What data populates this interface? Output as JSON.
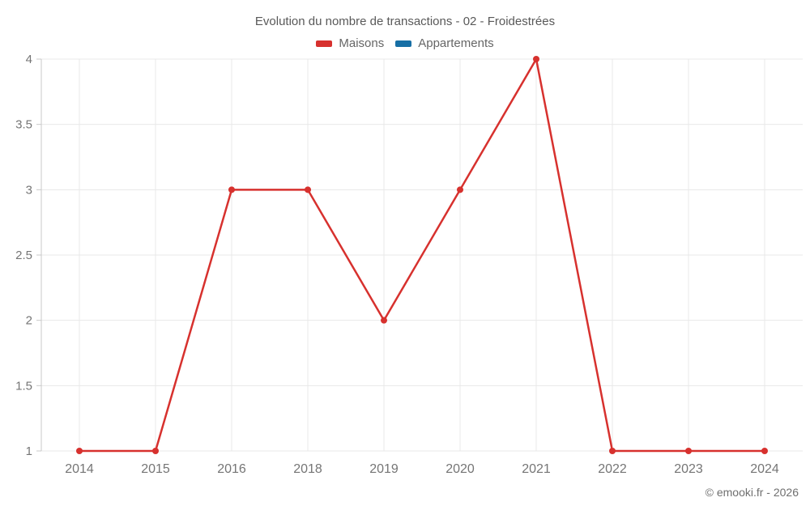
{
  "chart_data": {
    "type": "line",
    "title": "Evolution du nombre de transactions - 02 - Froidestrées",
    "categories": [
      "2014",
      "2015",
      "2016",
      "2018",
      "2019",
      "2020",
      "2021",
      "2022",
      "2023",
      "2024"
    ],
    "series": [
      {
        "name": "Maisons",
        "color": "#d7312e",
        "values": [
          1,
          1,
          3,
          3,
          2,
          3,
          4,
          1,
          1,
          1
        ]
      },
      {
        "name": "Appartements",
        "color": "#176fa5",
        "values": []
      }
    ],
    "ylabel": "",
    "xlabel": "",
    "ylim": [
      1,
      4
    ],
    "yticks": [
      1,
      1.5,
      2,
      2.5,
      3,
      3.5,
      4
    ],
    "grid": true,
    "legend_position": "top",
    "marker_radius": 4,
    "line_width": 2.5
  },
  "colors": {
    "axis": "#c9c9c9",
    "gridline": "#e8e8e8",
    "tick_label": "#757575"
  },
  "footer": {
    "copyright": "© emooki.fr - 2026"
  }
}
